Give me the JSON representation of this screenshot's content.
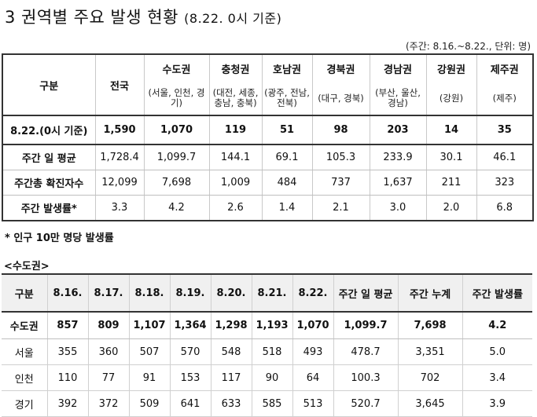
{
  "title": {
    "main": "3 권역별 주요 발생 현황",
    "sub": "(8.22. 0시 기준)"
  },
  "unit": "(주간: 8.16.~8.22., 단위: 명)",
  "table1": {
    "corner": "구분",
    "national": "전국",
    "regions": [
      {
        "name": "수도권",
        "sub": "(서울, 인천, 경기)"
      },
      {
        "name": "충청권",
        "sub": "(대전, 세종, 충남, 충북)"
      },
      {
        "name": "호남권",
        "sub": "(광주, 전남, 전북)"
      },
      {
        "name": "경북권",
        "sub": "(대구, 경북)"
      },
      {
        "name": "경남권",
        "sub": "(부산, 울산, 경남)"
      },
      {
        "name": "강원권",
        "sub": "(강원)"
      },
      {
        "name": "제주권",
        "sub": "(제주)"
      }
    ],
    "rows": [
      {
        "label": "8.22.(0시 기준)",
        "values": [
          "1,590",
          "1,070",
          "119",
          "51",
          "98",
          "203",
          "14",
          "35"
        ]
      },
      {
        "label": "주간 일 평균",
        "values": [
          "1,728.4",
          "1,099.7",
          "144.1",
          "69.1",
          "105.3",
          "233.9",
          "30.1",
          "46.1"
        ]
      },
      {
        "label": "주간총 확진자수",
        "values": [
          "12,099",
          "7,698",
          "1,009",
          "484",
          "737",
          "1,637",
          "211",
          "323"
        ]
      },
      {
        "label": "주간 발생률*",
        "values": [
          "3.3",
          "4.2",
          "2.6",
          "1.4",
          "2.1",
          "3.0",
          "2.0",
          "6.8"
        ]
      }
    ]
  },
  "footnote": "* 인구 10만 명당 발생률",
  "caption": "<수도권>",
  "table2": {
    "headers": [
      "구분",
      "8.16.",
      "8.17.",
      "8.18.",
      "8.19.",
      "8.20.",
      "8.21.",
      "8.22.",
      "주간 일 평균",
      "주간 누계",
      "주간 발생률"
    ],
    "rows": [
      {
        "label": "수도권",
        "values": [
          "857",
          "809",
          "1,107",
          "1,364",
          "1,298",
          "1,193",
          "1,070",
          "1,099.7",
          "7,698",
          "4.2"
        ]
      },
      {
        "label": "서울",
        "values": [
          "355",
          "360",
          "507",
          "570",
          "548",
          "518",
          "493",
          "478.7",
          "3,351",
          "5.0"
        ]
      },
      {
        "label": "인천",
        "values": [
          "110",
          "77",
          "91",
          "153",
          "117",
          "90",
          "64",
          "100.3",
          "702",
          "3.4"
        ]
      },
      {
        "label": "경기",
        "values": [
          "392",
          "372",
          "509",
          "641",
          "633",
          "585",
          "513",
          "520.7",
          "3,645",
          "3.9"
        ]
      }
    ]
  }
}
